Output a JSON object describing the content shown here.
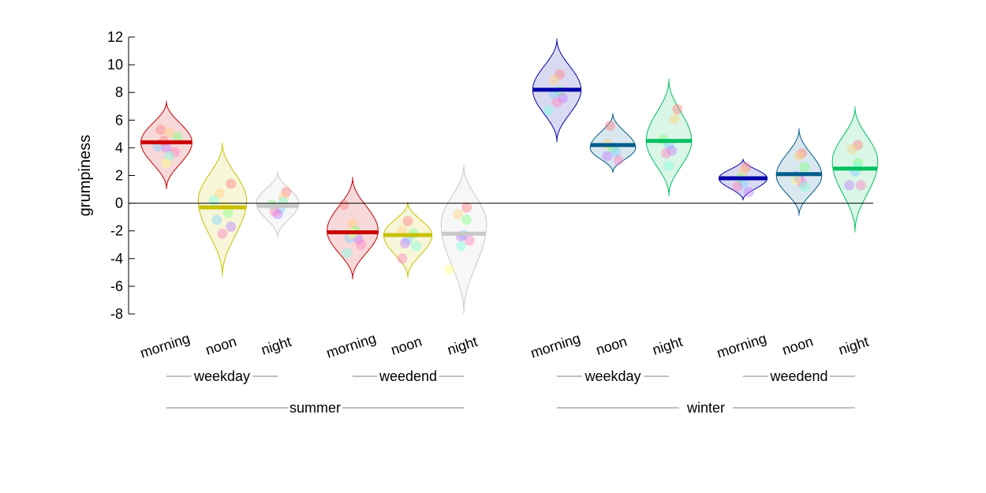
{
  "chart_data": {
    "type": "violin",
    "ylabel": "grumpiness",
    "ylim": [
      -8,
      12
    ],
    "yticks": [
      -8,
      -6,
      -4,
      -2,
      0,
      2,
      4,
      6,
      8,
      10,
      12
    ],
    "zero_line": true,
    "groups": [
      {
        "label": "summer",
        "subgroups": [
          {
            "label": "weekday"
          },
          {
            "label": "weedend"
          }
        ]
      },
      {
        "label": "winter",
        "subgroups": [
          {
            "label": "weekday"
          },
          {
            "label": "weedend"
          }
        ]
      }
    ],
    "categories": [
      "morning",
      "noon",
      "night",
      "morning",
      "noon",
      "night",
      "morning",
      "noon",
      "night",
      "morning",
      "noon",
      "night"
    ],
    "colors": {
      "morning_summer": "#cc0000",
      "noon_summer": "#c8c000",
      "night_summer": "#c8c8c8",
      "morning_winter": "#0000a8",
      "noon_winter": "#005c8a",
      "night_winter": "#00c060"
    },
    "violins": [
      {
        "color": "#cc0000",
        "mean": 4.4,
        "min": 1.0,
        "max": 7.4,
        "peak": 4.4,
        "width": 0.9,
        "points": [
          [
            -0.2,
            5.3
          ],
          [
            0.1,
            5.1
          ],
          [
            0.4,
            4.8
          ],
          [
            -0.3,
            4.1
          ],
          [
            0.0,
            4.0
          ],
          [
            0.3,
            3.7
          ],
          [
            0.1,
            3.4
          ],
          [
            0.0,
            2.9
          ],
          [
            -0.1,
            4.5
          ]
        ]
      },
      {
        "color": "#c8c000",
        "mean": -0.3,
        "min": -5.3,
        "max": 4.4,
        "peak": 0.2,
        "width": 0.85,
        "points": [
          [
            0.3,
            1.4
          ],
          [
            -0.1,
            0.7
          ],
          [
            0.2,
            -0.7
          ],
          [
            -0.2,
            -1.2
          ],
          [
            0.3,
            -1.7
          ],
          [
            0.0,
            -2.2
          ],
          [
            -0.3,
            0.2
          ],
          [
            0.1,
            -0.2
          ]
        ]
      },
      {
        "color": "#c8c8c8",
        "mean": -0.2,
        "min": -2.5,
        "max": 2.3,
        "peak": 0.0,
        "width": 0.75,
        "points": [
          [
            0.3,
            0.8
          ],
          [
            0.2,
            0.4
          ],
          [
            -0.2,
            -0.1
          ],
          [
            0.1,
            -0.4
          ],
          [
            0.0,
            -0.8
          ],
          [
            -0.1,
            -0.6
          ],
          [
            0.2,
            0.1
          ]
        ]
      },
      {
        "color": "#cc0000",
        "mean": -2.1,
        "min": -5.5,
        "max": 1.9,
        "peak": -2.0,
        "width": 0.9,
        "points": [
          [
            -0.3,
            -0.1
          ],
          [
            0.0,
            -1.5
          ],
          [
            0.1,
            -2.0
          ],
          [
            -0.1,
            -2.5
          ],
          [
            0.2,
            -2.6
          ],
          [
            0.3,
            -3.0
          ],
          [
            -0.2,
            -3.6
          ],
          [
            0.0,
            -2.2
          ]
        ]
      },
      {
        "color": "#c8c000",
        "mean": -2.3,
        "min": -5.4,
        "max": 0.1,
        "peak": -2.3,
        "width": 0.85,
        "points": [
          [
            0.0,
            -1.3
          ],
          [
            -0.2,
            -2.0
          ],
          [
            0.2,
            -2.2
          ],
          [
            0.0,
            -2.6
          ],
          [
            -0.1,
            -2.9
          ],
          [
            -0.2,
            -4.0
          ],
          [
            0.3,
            -3.1
          ]
        ]
      },
      {
        "color": "#c8c8c8",
        "mean": -2.2,
        "min": -8.0,
        "max": 2.8,
        "peak": -1.5,
        "width": 0.8,
        "points": [
          [
            0.1,
            -0.3
          ],
          [
            -0.2,
            -0.8
          ],
          [
            0.1,
            -1.2
          ],
          [
            0.0,
            -2.3
          ],
          [
            -0.1,
            -2.4
          ],
          [
            0.2,
            -2.7
          ],
          [
            -0.1,
            -3.1
          ],
          [
            -0.5,
            -4.8
          ]
        ]
      },
      {
        "color": "#0000a8",
        "mean": 8.2,
        "min": 4.4,
        "max": 11.9,
        "peak": 8.2,
        "width": 0.85,
        "points": [
          [
            0.1,
            9.3
          ],
          [
            -0.1,
            8.9
          ],
          [
            0.1,
            8.1
          ],
          [
            -0.1,
            7.9
          ],
          [
            0.2,
            7.6
          ],
          [
            0.0,
            7.3
          ],
          [
            -0.3,
            6.7
          ]
        ]
      },
      {
        "color": "#005c8a",
        "mean": 4.2,
        "min": 2.2,
        "max": 6.5,
        "peak": 4.0,
        "width": 0.8,
        "points": [
          [
            -0.1,
            5.6
          ],
          [
            -0.2,
            4.3
          ],
          [
            0.0,
            4.0
          ],
          [
            0.1,
            3.7
          ],
          [
            -0.2,
            3.4
          ],
          [
            0.2,
            3.1
          ]
        ]
      },
      {
        "color": "#00c060",
        "mean": 4.5,
        "min": 0.5,
        "max": 9.0,
        "peak": 4.5,
        "width": 0.8,
        "points": [
          [
            0.3,
            6.8
          ],
          [
            0.2,
            6.1
          ],
          [
            -0.2,
            4.6
          ],
          [
            0.0,
            4.2
          ],
          [
            0.1,
            3.8
          ],
          [
            -0.1,
            3.6
          ],
          [
            0.0,
            2.7
          ]
        ]
      },
      {
        "color": "#0000a8",
        "mean": 1.8,
        "min": 0.2,
        "max": 3.2,
        "peak": 1.8,
        "width": 0.85,
        "points": [
          [
            0.1,
            2.6
          ],
          [
            0.0,
            2.3
          ],
          [
            -0.1,
            1.8
          ],
          [
            0.0,
            1.4
          ],
          [
            0.2,
            0.8
          ],
          [
            -0.2,
            1.2
          ]
        ]
      },
      {
        "color": "#005c8a",
        "mean": 2.1,
        "min": -0.9,
        "max": 5.4,
        "peak": 2.0,
        "width": 0.8,
        "points": [
          [
            0.1,
            3.6
          ],
          [
            0.0,
            3.4
          ],
          [
            0.2,
            2.6
          ],
          [
            -0.1,
            2.0
          ],
          [
            0.0,
            1.8
          ],
          [
            0.1,
            1.5
          ],
          [
            0.2,
            1.2
          ],
          [
            -0.1,
            1.7
          ]
        ]
      },
      {
        "color": "#00c060",
        "mean": 2.5,
        "min": -2.1,
        "max": 7.0,
        "peak": 3.0,
        "width": 0.8,
        "points": [
          [
            0.1,
            4.2
          ],
          [
            -0.1,
            3.9
          ],
          [
            0.1,
            2.9
          ],
          [
            0.0,
            2.3
          ],
          [
            -0.2,
            1.3
          ],
          [
            0.2,
            1.3
          ],
          [
            0.1,
            2.6
          ]
        ]
      }
    ]
  }
}
